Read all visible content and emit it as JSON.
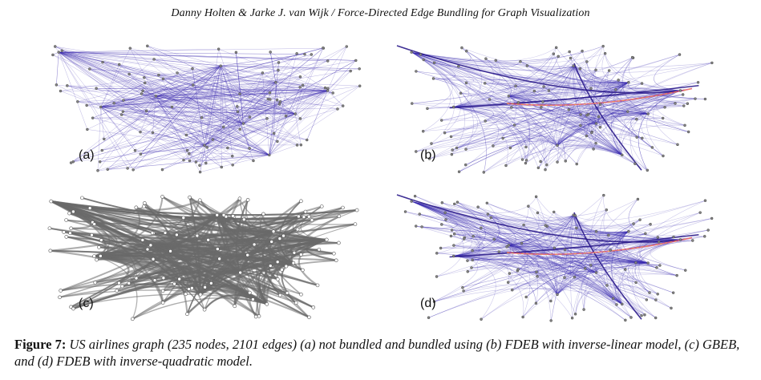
{
  "header": {
    "running_title": "Danny Holten & Jarke J. van Wijk / Force-Directed Edge Bundling for Graph Visualization"
  },
  "panels": [
    {
      "label": "(a)",
      "style": "unbundled",
      "edge_color": "#3b2bb0"
    },
    {
      "label": "(b)",
      "style": "fdeb-inverse-linear",
      "edge_color": "#3b2bb0",
      "highlight_color": "#e0507a"
    },
    {
      "label": "(c)",
      "style": "gbeb",
      "edge_color": "#6a6a6a"
    },
    {
      "label": "(d)",
      "style": "fdeb-inverse-quadratic",
      "edge_color": "#3b2bb0",
      "highlight_color": "#e0507a"
    }
  ],
  "caption": {
    "figure_label": "Figure 7:",
    "text": "US airlines graph (235 nodes, 2101 edges) (a) not bundled and bundled using (b) FDEB with inverse-linear model, (c) GBEB, and (d) FDEB with inverse-quadratic model."
  }
}
